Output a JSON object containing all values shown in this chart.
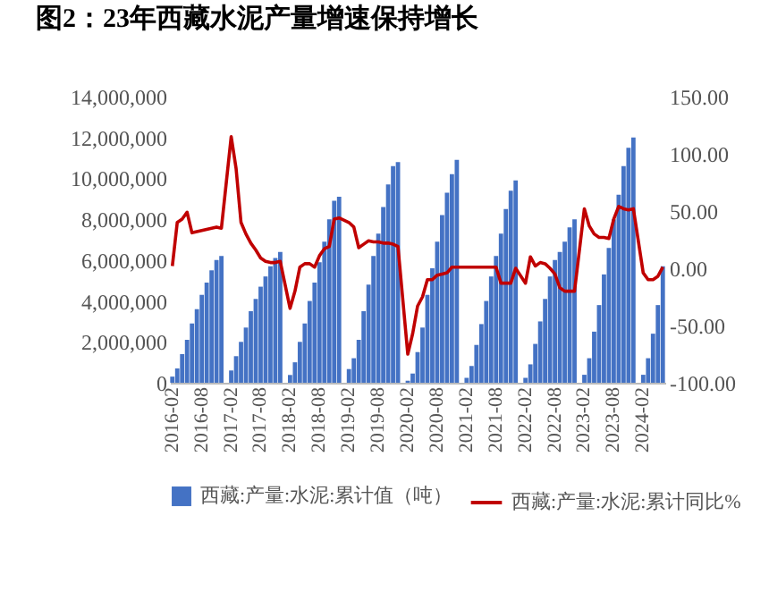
{
  "chart_data": {
    "type": "bar",
    "title": "图2：23年西藏水泥产量增速保持增长",
    "categories": [
      "2016-02",
      null,
      null,
      null,
      null,
      null,
      "2016-08",
      null,
      null,
      null,
      null,
      null,
      "2017-02",
      null,
      null,
      null,
      null,
      null,
      "2017-08",
      null,
      null,
      null,
      null,
      null,
      "2018-02",
      null,
      null,
      null,
      null,
      null,
      "2018-08",
      null,
      null,
      null,
      null,
      null,
      "2019-02",
      null,
      null,
      null,
      null,
      null,
      "2019-08",
      null,
      null,
      null,
      null,
      null,
      "2020-02",
      null,
      null,
      null,
      null,
      null,
      "2020-08",
      null,
      null,
      null,
      null,
      null,
      "2021-02",
      null,
      null,
      null,
      null,
      null,
      "2021-08",
      null,
      null,
      null,
      null,
      null,
      "2022-02",
      null,
      null,
      null,
      null,
      null,
      "2022-08",
      null,
      null,
      null,
      null,
      null,
      "2023-02",
      null,
      null,
      null,
      null,
      null,
      "2023-08",
      null,
      null,
      null,
      null,
      null,
      "2024-02",
      null,
      null,
      null,
      null
    ],
    "series": [
      {
        "name": "西藏:产量:水泥:累计值（吨）",
        "color": "#4472c4",
        "values": [
          300000,
          700000,
          1400000,
          2100000,
          2900000,
          3600000,
          4300000,
          4900000,
          5500000,
          6000000,
          6200000,
          null,
          600000,
          1300000,
          2000000,
          2700000,
          3500000,
          4100000,
          4700000,
          5200000,
          5700000,
          6100000,
          6400000,
          null,
          380000,
          1000000,
          2000000,
          2900000,
          4000000,
          4900000,
          5900000,
          6900000,
          8000000,
          8900000,
          9100000,
          null,
          670000,
          1200000,
          2100000,
          3500000,
          4800000,
          6200000,
          7300000,
          8600000,
          9700000,
          10600000,
          10800000,
          null,
          100000,
          450000,
          1500000,
          2700000,
          4300000,
          5600000,
          6900000,
          8200000,
          9300000,
          10200000,
          10900000,
          null,
          240000,
          820000,
          1850000,
          2870000,
          4000000,
          5200000,
          6200000,
          7300000,
          8500000,
          9400000,
          9900000,
          null,
          240000,
          900000,
          1900000,
          3000000,
          4100000,
          5200000,
          6000000,
          6400000,
          6900000,
          7600000,
          8000000,
          null,
          390000,
          1200000,
          2500000,
          3800000,
          5300000,
          6600000,
          8000000,
          9200000,
          10600000,
          11500000,
          12000000,
          null,
          390000,
          1200000,
          2400000,
          3800000,
          5700000
        ]
      },
      {
        "name": "西藏:产量:水泥:累计同比%",
        "type": "line",
        "axis": "y2",
        "color": "#c00000",
        "values": [
          2,
          40,
          43,
          49,
          31,
          32,
          33,
          34,
          35,
          36,
          35,
          null,
          115,
          87,
          40,
          30,
          22,
          16,
          9,
          6,
          5,
          5,
          6,
          null,
          -35,
          -20,
          1,
          4,
          4,
          1,
          11,
          17,
          19,
          43,
          44,
          null,
          40,
          36,
          18,
          21,
          24,
          23,
          23,
          22,
          22,
          21,
          19,
          null,
          -75,
          -57,
          -33,
          -25,
          -10,
          -10,
          -6,
          -5,
          -4,
          1,
          1,
          null,
          1,
          1,
          1,
          1,
          1,
          1,
          1,
          -13,
          -13,
          -13,
          0,
          null,
          -13,
          10,
          2,
          5,
          4,
          0,
          -5,
          -17,
          -20,
          -20,
          -20,
          null,
          52,
          37,
          30,
          27,
          27,
          26,
          43,
          54,
          52,
          51,
          52,
          null,
          -4,
          -10,
          -10,
          -7,
          1
        ]
      }
    ],
    "ylim": [
      0,
      14000000
    ],
    "yticks": [
      0,
      {
        "value": 2000000,
        "label": "2,000,000"
      },
      {
        "value": 4000000,
        "label": "4,000,000"
      },
      {
        "value": 6000000,
        "label": "6,000,000"
      },
      {
        "value": 8000000,
        "label": "8,000,000"
      },
      {
        "value": 10000000,
        "label": "10,000,000"
      },
      {
        "value": 12000000,
        "label": "12,000,000"
      },
      {
        "value": 14000000,
        "label": "14,000,000"
      }
    ],
    "y2lim": [
      -100,
      150
    ],
    "y2ticks": [
      {
        "value": -100,
        "label": "-100.00"
      },
      {
        "value": -50,
        "label": "-50.00"
      },
      {
        "value": 0,
        "label": "0.00"
      },
      {
        "value": 50,
        "label": "50.00"
      },
      {
        "value": 100,
        "label": "100.00"
      },
      {
        "value": 150,
        "label": "150.00"
      }
    ],
    "legend": "bottom",
    "grid": false
  }
}
